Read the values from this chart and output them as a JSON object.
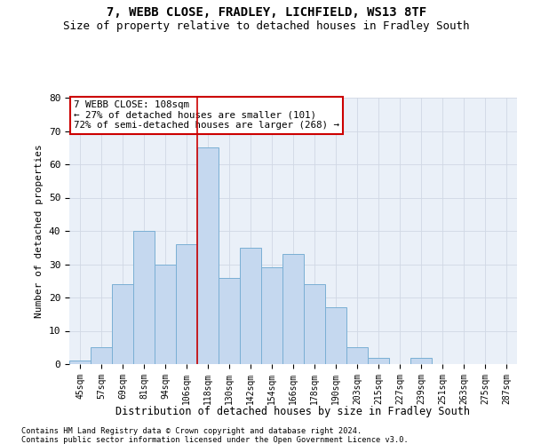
{
  "title1": "7, WEBB CLOSE, FRADLEY, LICHFIELD, WS13 8TF",
  "title2": "Size of property relative to detached houses in Fradley South",
  "xlabel": "Distribution of detached houses by size in Fradley South",
  "ylabel": "Number of detached\nproperties",
  "categories": [
    "45sqm",
    "57sqm",
    "69sqm",
    "81sqm",
    "94sqm",
    "106sqm",
    "118sqm",
    "130sqm",
    "142sqm",
    "154sqm",
    "166sqm",
    "178sqm",
    "190sqm",
    "203sqm",
    "215sqm",
    "227sqm",
    "239sqm",
    "251sqm",
    "263sqm",
    "275sqm",
    "287sqm"
  ],
  "values": [
    1,
    5,
    24,
    40,
    30,
    36,
    65,
    26,
    35,
    29,
    33,
    24,
    17,
    5,
    2,
    0,
    2,
    0,
    0,
    0,
    0
  ],
  "bar_color": "#c5d8ef",
  "bar_edge_color": "#7aafd4",
  "vline_color": "#cc0000",
  "annotation_line1": "7 WEBB CLOSE: 108sqm",
  "annotation_line2": "← 27% of detached houses are smaller (101)",
  "annotation_line3": "72% of semi-detached houses are larger (268) →",
  "annotation_box_color": "white",
  "annotation_box_edge": "#cc0000",
  "ylim": [
    0,
    80
  ],
  "yticks": [
    0,
    10,
    20,
    30,
    40,
    50,
    60,
    70,
    80
  ],
  "footer1": "Contains HM Land Registry data © Crown copyright and database right 2024.",
  "footer2": "Contains public sector information licensed under the Open Government Licence v3.0.",
  "grid_color": "#d0d8e4",
  "background_color": "#eaf0f8",
  "title1_fontsize": 10,
  "title2_fontsize": 9
}
